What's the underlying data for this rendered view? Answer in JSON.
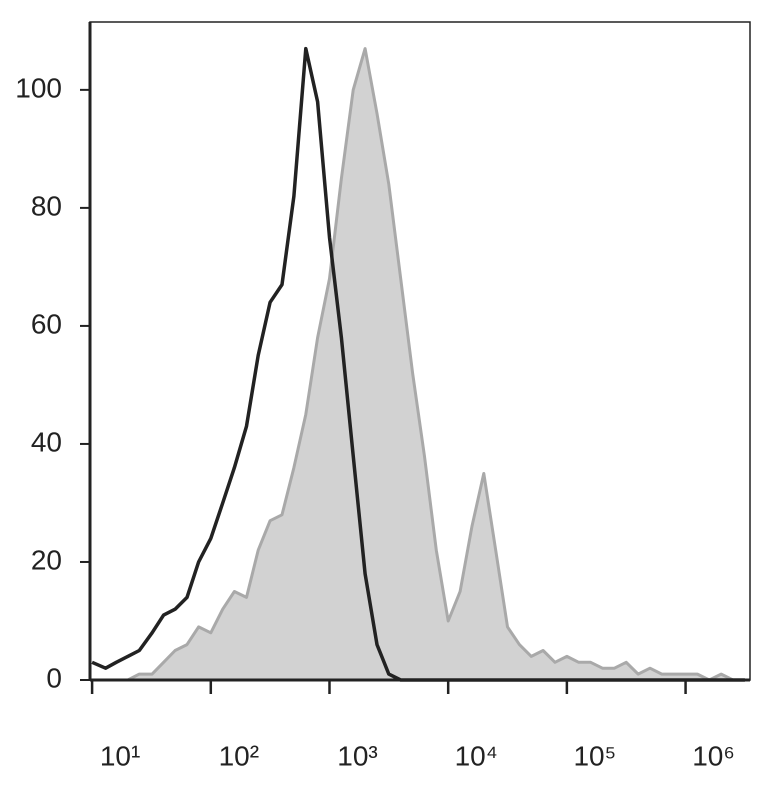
{
  "chart_data": {
    "type": "histogram-overlay",
    "log_x": true,
    "xlim": [
      9.6,
      3490000
    ],
    "ylim": [
      0,
      111.5
    ],
    "xticks": [
      {
        "value": 10,
        "label": "10¹"
      },
      {
        "value": 100,
        "label": "10²"
      },
      {
        "value": 1000,
        "label": "10³"
      },
      {
        "value": 10000,
        "label": "10⁴"
      },
      {
        "value": 100000,
        "label": "10⁵"
      },
      {
        "value": 1000000,
        "label": "10⁶"
      }
    ],
    "yticks": [
      0,
      20,
      40,
      60,
      80,
      100
    ],
    "x": [
      10,
      13,
      16,
      20,
      25,
      32,
      40,
      50,
      63,
      79,
      100,
      126,
      158,
      200,
      251,
      316,
      398,
      501,
      631,
      794,
      1000,
      1259,
      1585,
      1995,
      2512,
      3162,
      3981,
      5012,
      6310,
      7943,
      10000,
      12589,
      15849,
      19953,
      25119,
      31623,
      39811,
      50119,
      63096,
      79433,
      100000,
      125893,
      158489,
      199526,
      251189,
      316228,
      398107,
      501187,
      630957,
      794328,
      1000000,
      1258925,
      1584893,
      1995262,
      2511886,
      3162278
    ],
    "series": [
      {
        "style": "filled",
        "color": "#d2d2d2",
        "stroke": "#a9a9a9",
        "values": [
          0,
          0,
          0,
          0,
          1,
          1,
          3,
          5,
          6,
          9,
          8,
          12,
          15,
          14,
          22,
          27,
          28,
          36,
          45,
          58,
          68,
          85,
          100,
          107,
          96,
          84,
          68,
          52,
          38,
          22,
          10,
          15,
          26,
          35,
          22,
          9,
          6,
          4,
          5,
          3,
          4,
          3,
          3,
          2,
          2,
          3,
          1,
          2,
          1,
          1,
          1,
          1,
          0,
          1,
          0,
          0
        ]
      },
      {
        "style": "line",
        "color": "#222222",
        "values": [
          3,
          2,
          3,
          4,
          5,
          8,
          11,
          12,
          14,
          20,
          24,
          30,
          36,
          43,
          55,
          64,
          67,
          82,
          107,
          98,
          75,
          58,
          38,
          18,
          6,
          1,
          0,
          0,
          0,
          0,
          0,
          0,
          0,
          0,
          0,
          0,
          0,
          0,
          0,
          0,
          0,
          0,
          0,
          0,
          0,
          0,
          0,
          0,
          0,
          0,
          0,
          0,
          0,
          0,
          0,
          0
        ]
      }
    ]
  }
}
